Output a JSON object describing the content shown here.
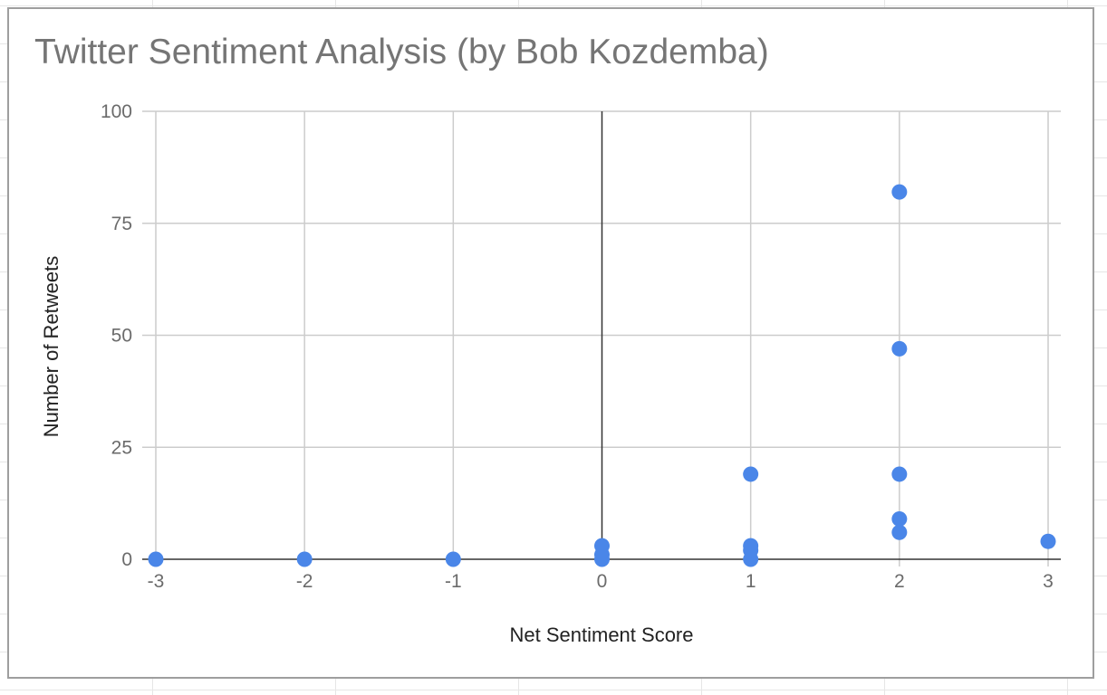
{
  "chart_data": {
    "type": "scatter",
    "title": "Twitter Sentiment Analysis (by Bob Kozdemba)",
    "xlabel": "Net Sentiment Score",
    "ylabel": "Number of Retweets",
    "xlim": [
      -3,
      3
    ],
    "ylim": [
      0,
      100
    ],
    "x_ticks": [
      "-3",
      "-2",
      "-1",
      "0",
      "1",
      "2",
      "3"
    ],
    "y_ticks": [
      "0",
      "25",
      "50",
      "75",
      "100"
    ],
    "grid": true,
    "legend": "none",
    "series": [
      {
        "color": "#4a86e8",
        "points": [
          {
            "x": -3,
            "y": 0
          },
          {
            "x": -2,
            "y": 0
          },
          {
            "x": -1,
            "y": 0
          },
          {
            "x": 0,
            "y": 0
          },
          {
            "x": 0,
            "y": 1
          },
          {
            "x": 0,
            "y": 3
          },
          {
            "x": 1,
            "y": 0
          },
          {
            "x": 1,
            "y": 2
          },
          {
            "x": 1,
            "y": 3
          },
          {
            "x": 1,
            "y": 19
          },
          {
            "x": 2,
            "y": 6
          },
          {
            "x": 2,
            "y": 9
          },
          {
            "x": 2,
            "y": 19
          },
          {
            "x": 2,
            "y": 47
          },
          {
            "x": 2,
            "y": 82
          },
          {
            "x": 3,
            "y": 4
          }
        ]
      }
    ]
  }
}
